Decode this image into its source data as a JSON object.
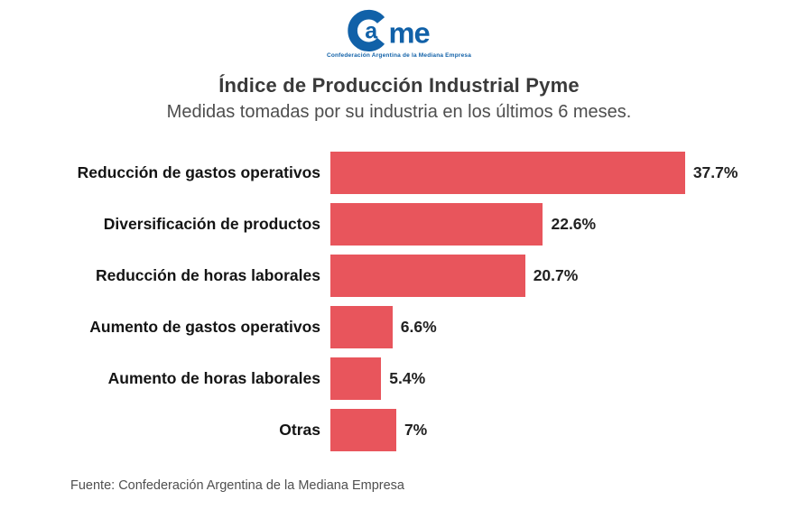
{
  "logo": {
    "name": "CAME",
    "letter_a": "a",
    "letter_me": "me",
    "tagline": "Confederación Argentina de la Mediana Empresa",
    "color": "#1161A8"
  },
  "title": "Índice de Producción Industrial Pyme",
  "subtitle": "Medidas tomadas por su industria en los últimos 6 meses.",
  "source": "Fuente: Confederación Argentina de la Mediana Empresa",
  "chart_data": {
    "type": "bar",
    "orientation": "horizontal",
    "title": "Índice de Producción Industrial Pyme",
    "subtitle": "Medidas tomadas por su industria en los últimos 6 meses.",
    "categories": [
      "Reducción de gastos operativos",
      "Diversificación de productos",
      "Reducción de horas laborales",
      "Aumento de gastos operativos",
      "Aumento de horas laborales",
      "Otras"
    ],
    "values": [
      37.7,
      22.6,
      20.7,
      6.6,
      5.4,
      7
    ],
    "value_labels": [
      "37.7%",
      "22.6%",
      "20.7%",
      "6.6%",
      "5.4%",
      "7%"
    ],
    "bar_color": "#E8555C",
    "xlim": [
      0,
      42
    ],
    "grid": false,
    "legend": false
  }
}
